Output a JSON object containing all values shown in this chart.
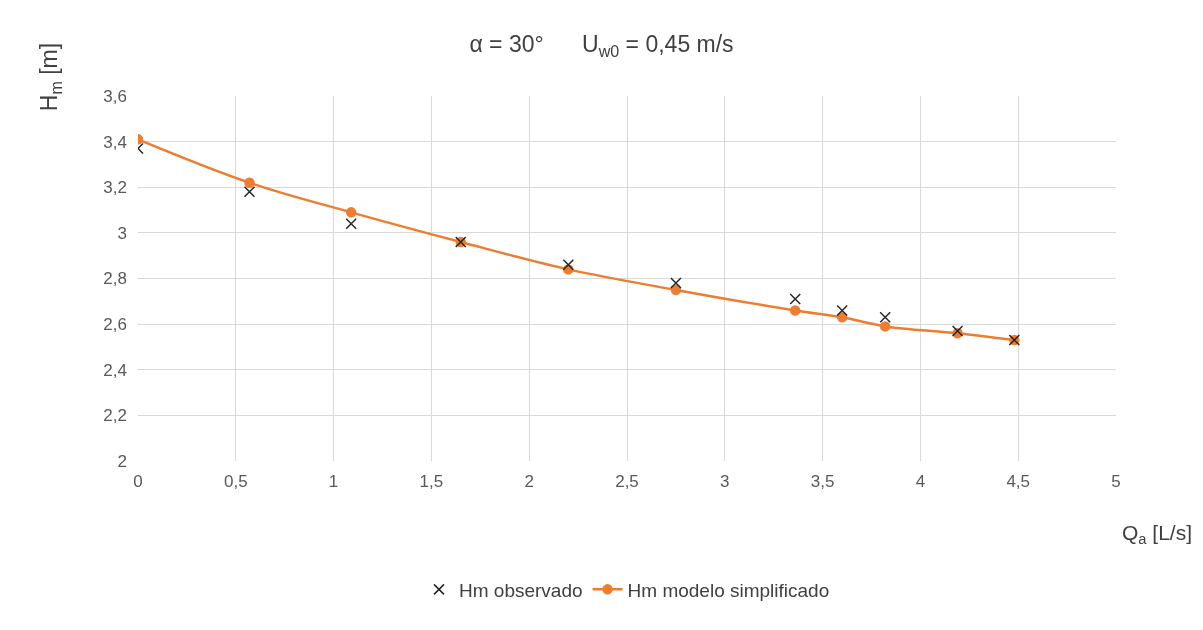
{
  "chart_data": {
    "type": "line",
    "title": "α = 30°      U$_{w0}$ = 0,45 m/s",
    "xlabel": "Q$_{a}$ [L/s]",
    "ylabel": "H$_{m}$ [m]",
    "x": [
      0,
      0.57,
      1.09,
      1.65,
      2.2,
      2.75,
      3.36,
      3.6,
      3.82,
      4.19,
      4.48
    ],
    "series": [
      {
        "name": "Hm observado",
        "type": "scatter",
        "marker": "cross",
        "color": "#262626",
        "values": [
          3.37,
          3.18,
          3.04,
          2.96,
          2.86,
          2.78,
          2.71,
          2.66,
          2.63,
          2.57,
          2.53
        ]
      },
      {
        "name": "Hm modelo simplificado",
        "marker": "circle",
        "color": "#ed7d31",
        "values": [
          3.41,
          3.22,
          3.09,
          2.96,
          2.84,
          2.75,
          2.66,
          2.63,
          2.59,
          2.56,
          2.53
        ]
      }
    ],
    "xlim": [
      0,
      5
    ],
    "xticks": [
      0,
      {
        "value": 0.5,
        "label": "0,5"
      },
      1,
      {
        "value": 1.5,
        "label": "1,5"
      },
      2,
      {
        "value": 2.5,
        "label": "2,5"
      },
      3,
      {
        "value": 3.5,
        "label": "3,5"
      },
      4,
      {
        "value": 4.5,
        "label": "4,5"
      },
      5
    ],
    "ylim": [
      2,
      3.6
    ],
    "yticks": [
      2,
      {
        "value": 2.2,
        "label": "2,2"
      },
      {
        "value": 2.4,
        "label": "2,4"
      },
      {
        "value": 2.6,
        "label": "2,6"
      },
      {
        "value": 2.8,
        "label": "2,8"
      },
      3,
      {
        "value": 3.2,
        "label": "3,2"
      },
      {
        "value": 3.4,
        "label": "3,4"
      },
      {
        "value": 3.6,
        "label": "3,6"
      }
    ],
    "grid": true,
    "legend": "bottom"
  }
}
